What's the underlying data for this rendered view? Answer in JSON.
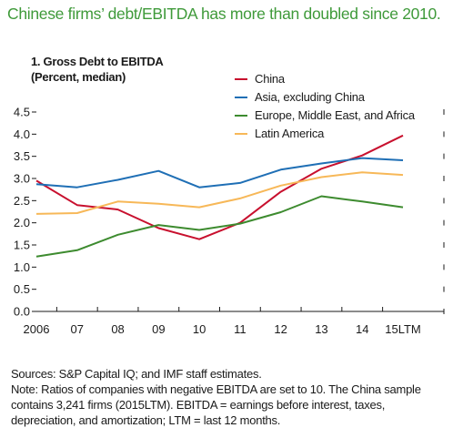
{
  "headline": "Chinese firms’ debt/EBITDA has more than doubled since 2010.",
  "colors": {
    "headline": "#3f9a3a"
  },
  "footer": {
    "line1": "Sources: S&P Capital IQ; and IMF staff estimates.",
    "line2": "Note: Ratios of companies with negative EBITDA are set to 10. The China sample",
    "line3": "contains 3,241 firms (2015LTM). EBITDA = earnings before interest, taxes,",
    "line4": "depreciation, and amortization; LTM = last 12 months."
  },
  "chart_data": {
    "type": "line",
    "title_line1": "1. Gross Debt to EBITDA",
    "title_line2": "(Percent, median)",
    "categories": [
      "2006",
      "07",
      "08",
      "09",
      "10",
      "11",
      "12",
      "13",
      "14",
      "15LTM"
    ],
    "yticks": [
      "0.0",
      "0.5",
      "1.0",
      "1.5",
      "2.0",
      "2.5",
      "3.0",
      "3.5",
      "4.0",
      "4.5"
    ],
    "ylim": [
      0,
      4.5
    ],
    "grid": false,
    "legend_position": "top-right",
    "series": [
      {
        "name": "China",
        "color": "#c8102e",
        "values": [
          2.95,
          2.4,
          2.3,
          1.88,
          1.63,
          2.0,
          2.7,
          3.22,
          3.52,
          3.97
        ]
      },
      {
        "name": "Asia, excluding China",
        "color": "#1f6fb5",
        "values": [
          2.87,
          2.8,
          2.97,
          3.17,
          2.8,
          2.9,
          3.2,
          3.34,
          3.46,
          3.41
        ]
      },
      {
        "name": "Europe, Middle East, and Africa",
        "color": "#3d8b2f",
        "values": [
          1.24,
          1.38,
          1.73,
          1.95,
          1.84,
          1.98,
          2.24,
          2.6,
          2.48,
          2.35
        ]
      },
      {
        "name": "Latin America",
        "color": "#f7b858",
        "values": [
          2.2,
          2.22,
          2.48,
          2.43,
          2.35,
          2.55,
          2.84,
          3.03,
          3.14,
          3.08
        ]
      }
    ]
  }
}
